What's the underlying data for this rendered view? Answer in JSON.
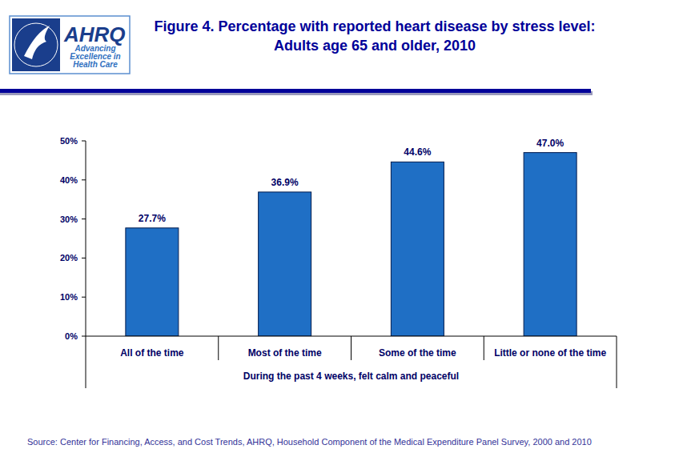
{
  "chart_data": {
    "type": "bar",
    "title": "Figure 4. Percentage with reported heart disease by stress level: Adults age 65 and older, 2010",
    "x_label": "During the past 4 weeks, felt calm and peaceful",
    "categories": [
      "All of the time",
      "Most of the time",
      "Some of the time",
      "Little or none of the time"
    ],
    "values": [
      27.7,
      36.9,
      44.6,
      47.0
    ],
    "value_labels": [
      "27.7%",
      "36.9%",
      "44.6%",
      "47.0%"
    ],
    "color": "#1f6fc5",
    "ylim": [
      0,
      50
    ],
    "yticks": [
      {
        "value": 0,
        "label": "0%"
      },
      {
        "value": 10,
        "label": "10%"
      },
      {
        "value": 20,
        "label": "20%"
      },
      {
        "value": 30,
        "label": "30%"
      },
      {
        "value": 40,
        "label": "40%"
      },
      {
        "value": 50,
        "label": "50%"
      }
    ],
    "grid": false,
    "data_labels": true,
    "logo": {
      "name": "AHRQ",
      "tagline": [
        "Advancing",
        "Excellence in",
        "Health Care"
      ]
    },
    "source": "Source: Center for Financing, Access, and Cost Trends, AHRQ, Household Component of the Medical Expenditure Panel Survey, 2000 and 2010"
  }
}
